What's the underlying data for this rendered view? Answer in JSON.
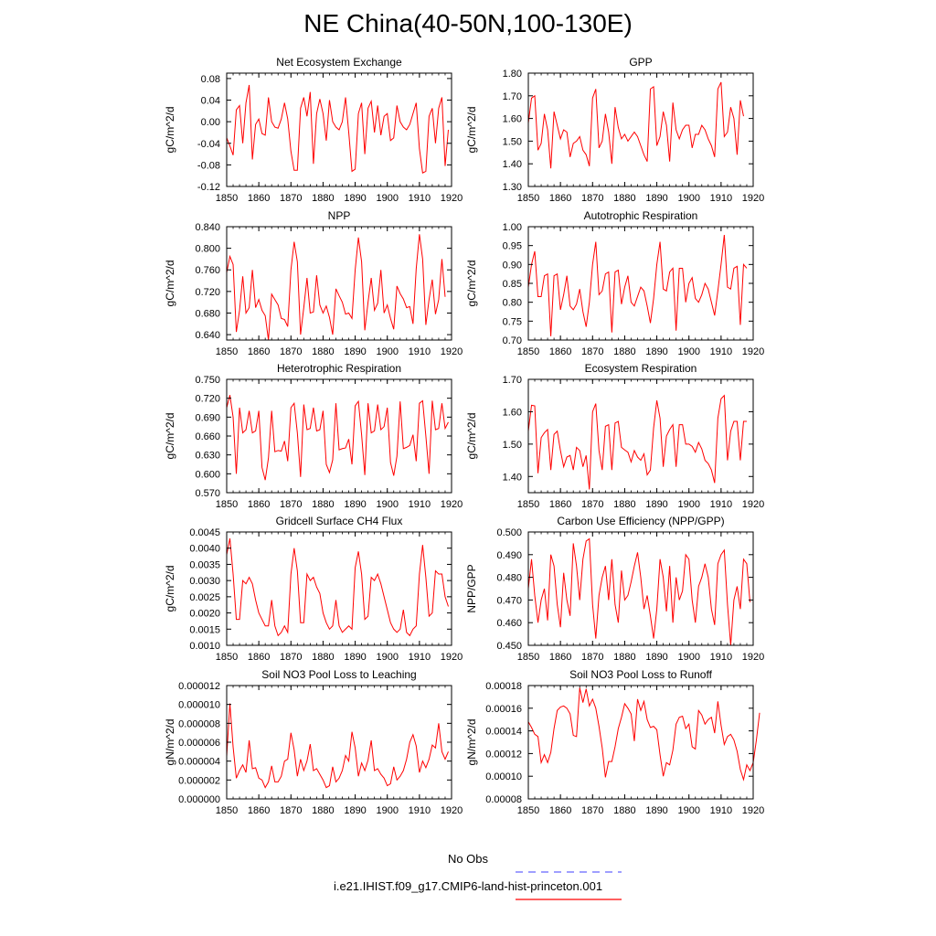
{
  "title": "NE China(40-50N,100-130E)",
  "legend": {
    "obs_label": "No Obs",
    "obs_color": "#6666ff",
    "model_label": "i.e21.IHIST.f09_g17.CMIP6-land-hist-princeton.001",
    "model_color": "#ff0000"
  },
  "chart_data": [
    {
      "type": "line",
      "title": "Net Ecosystem Exchange",
      "ylabel": "gC/m^2/d",
      "xlim": [
        1850,
        1920
      ],
      "xticks": [
        1850,
        1860,
        1870,
        1880,
        1890,
        1900,
        1910,
        1920
      ],
      "ylim": [
        -0.12,
        0.09
      ],
      "yticks": [
        -0.12,
        -0.08,
        -0.04,
        0.0,
        0.04,
        0.08
      ],
      "yticklabels": [
        "-0.12",
        "-0.08",
        "-0.04",
        "0.00",
        "0.04",
        "0.08"
      ],
      "x_start": 1850,
      "values": [
        -0.03,
        -0.045,
        -0.062,
        0.022,
        0.03,
        -0.04,
        0.035,
        0.068,
        -0.07,
        -0.005,
        0.005,
        -0.022,
        -0.025,
        0.045,
        0.0,
        -0.01,
        -0.012,
        0.005,
        0.035,
        0.005,
        -0.055,
        -0.09,
        -0.09,
        0.025,
        0.045,
        0.01,
        0.055,
        -0.078,
        0.015,
        0.042,
        0.015,
        -0.035,
        0.04,
        0.0,
        -0.01,
        -0.015,
        0.0,
        0.045,
        -0.02,
        -0.092,
        -0.088,
        0.015,
        0.035,
        -0.06,
        0.025,
        0.038,
        -0.02,
        0.03,
        -0.025,
        0.01,
        0.015,
        -0.035,
        -0.03,
        0.03,
        0.0,
        -0.01,
        -0.015,
        -0.005,
        0.015,
        0.035,
        -0.05,
        -0.095,
        -0.092,
        0.01,
        0.025,
        -0.04,
        0.025,
        0.045,
        -0.082,
        -0.015
      ]
    },
    {
      "type": "line",
      "title": "GPP",
      "ylabel": "gC/m^2/d",
      "xlim": [
        1850,
        1920
      ],
      "xticks": [
        1850,
        1860,
        1870,
        1880,
        1890,
        1900,
        1910,
        1920
      ],
      "ylim": [
        1.3,
        1.8
      ],
      "yticks": [
        1.3,
        1.4,
        1.5,
        1.6,
        1.7,
        1.8
      ],
      "yticklabels": [
        "1.30",
        "1.40",
        "1.50",
        "1.60",
        "1.70",
        "1.80"
      ],
      "x_start": 1850,
      "values": [
        1.58,
        1.69,
        1.7,
        1.46,
        1.49,
        1.62,
        1.55,
        1.38,
        1.63,
        1.57,
        1.51,
        1.55,
        1.54,
        1.43,
        1.49,
        1.5,
        1.52,
        1.46,
        1.44,
        1.39,
        1.69,
        1.73,
        1.47,
        1.5,
        1.62,
        1.54,
        1.4,
        1.65,
        1.56,
        1.51,
        1.53,
        1.5,
        1.52,
        1.54,
        1.52,
        1.48,
        1.44,
        1.41,
        1.73,
        1.74,
        1.48,
        1.52,
        1.63,
        1.57,
        1.41,
        1.67,
        1.55,
        1.51,
        1.55,
        1.57,
        1.57,
        1.47,
        1.53,
        1.53,
        1.57,
        1.55,
        1.51,
        1.48,
        1.43,
        1.73,
        1.76,
        1.52,
        1.54,
        1.65,
        1.6,
        1.44,
        1.68,
        1.61
      ]
    },
    {
      "type": "line",
      "title": "NPP",
      "ylabel": "gC/m^2/d",
      "xlim": [
        1850,
        1920
      ],
      "xticks": [
        1850,
        1860,
        1870,
        1880,
        1890,
        1900,
        1910,
        1920
      ],
      "ylim": [
        0.63,
        0.84
      ],
      "yticks": [
        0.64,
        0.68,
        0.72,
        0.76,
        0.8,
        0.84
      ],
      "yticklabels": [
        "0.640",
        "0.680",
        "0.720",
        "0.760",
        "0.800",
        "0.840"
      ],
      "x_start": 1850,
      "values": [
        0.755,
        0.785,
        0.77,
        0.645,
        0.685,
        0.748,
        0.68,
        0.69,
        0.76,
        0.69,
        0.705,
        0.685,
        0.675,
        0.63,
        0.715,
        0.705,
        0.695,
        0.67,
        0.668,
        0.655,
        0.76,
        0.812,
        0.775,
        0.64,
        0.69,
        0.745,
        0.68,
        0.682,
        0.75,
        0.695,
        0.68,
        0.693,
        0.672,
        0.64,
        0.725,
        0.712,
        0.7,
        0.678,
        0.68,
        0.67,
        0.76,
        0.82,
        0.775,
        0.648,
        0.7,
        0.745,
        0.685,
        0.698,
        0.76,
        0.68,
        0.695,
        0.67,
        0.65,
        0.73,
        0.716,
        0.706,
        0.69,
        0.692,
        0.66,
        0.762,
        0.826,
        0.78,
        0.658,
        0.705,
        0.742,
        0.678,
        0.705,
        0.78,
        0.71
      ]
    },
    {
      "type": "line",
      "title": "Autotrophic Respiration",
      "ylabel": "gC/m^2/d",
      "xlim": [
        1850,
        1920
      ],
      "xticks": [
        1850,
        1860,
        1870,
        1880,
        1890,
        1900,
        1910,
        1920
      ],
      "ylim": [
        0.7,
        1.0
      ],
      "yticks": [
        0.7,
        0.75,
        0.8,
        0.85,
        0.9,
        0.95,
        1.0
      ],
      "yticklabels": [
        "0.70",
        "0.75",
        "0.80",
        "0.85",
        "0.90",
        "0.95",
        "1.00"
      ],
      "x_start": 1850,
      "values": [
        0.84,
        0.9,
        0.935,
        0.815,
        0.815,
        0.87,
        0.875,
        0.71,
        0.87,
        0.875,
        0.78,
        0.82,
        0.87,
        0.79,
        0.78,
        0.795,
        0.835,
        0.775,
        0.735,
        0.8,
        0.9,
        0.96,
        0.82,
        0.83,
        0.875,
        0.88,
        0.72,
        0.88,
        0.885,
        0.795,
        0.84,
        0.87,
        0.8,
        0.79,
        0.815,
        0.84,
        0.83,
        0.79,
        0.745,
        0.81,
        0.9,
        0.96,
        0.835,
        0.83,
        0.88,
        0.89,
        0.725,
        0.89,
        0.89,
        0.8,
        0.85,
        0.865,
        0.81,
        0.8,
        0.82,
        0.85,
        0.835,
        0.8,
        0.765,
        0.83,
        0.9,
        0.978,
        0.84,
        0.835,
        0.89,
        0.895,
        0.74,
        0.9,
        0.89
      ]
    },
    {
      "type": "line",
      "title": "Heterotrophic Respiration",
      "ylabel": "gC/m^2/d",
      "xlim": [
        1850,
        1920
      ],
      "xticks": [
        1850,
        1860,
        1870,
        1880,
        1890,
        1900,
        1910,
        1920
      ],
      "ylim": [
        0.57,
        0.75
      ],
      "yticks": [
        0.57,
        0.6,
        0.63,
        0.66,
        0.69,
        0.72,
        0.75
      ],
      "yticklabels": [
        "0.570",
        "0.600",
        "0.630",
        "0.660",
        "0.690",
        "0.720",
        "0.750"
      ],
      "x_start": 1850,
      "values": [
        0.705,
        0.725,
        0.69,
        0.6,
        0.705,
        0.665,
        0.67,
        0.7,
        0.665,
        0.668,
        0.7,
        0.61,
        0.59,
        0.625,
        0.7,
        0.635,
        0.637,
        0.636,
        0.652,
        0.62,
        0.705,
        0.712,
        0.665,
        0.595,
        0.71,
        0.67,
        0.672,
        0.705,
        0.668,
        0.67,
        0.7,
        0.615,
        0.602,
        0.622,
        0.712,
        0.638,
        0.64,
        0.641,
        0.655,
        0.615,
        0.708,
        0.715,
        0.662,
        0.598,
        0.712,
        0.665,
        0.668,
        0.71,
        0.67,
        0.675,
        0.705,
        0.618,
        0.597,
        0.628,
        0.715,
        0.64,
        0.642,
        0.645,
        0.662,
        0.62,
        0.712,
        0.716,
        0.66,
        0.6,
        0.716,
        0.67,
        0.672,
        0.712,
        0.672,
        0.682
      ]
    },
    {
      "type": "line",
      "title": "Ecosystem Respiration",
      "ylabel": "gC/m^2/d",
      "xlim": [
        1850,
        1920
      ],
      "xticks": [
        1850,
        1860,
        1870,
        1880,
        1890,
        1900,
        1910,
        1920
      ],
      "ylim": [
        1.35,
        1.7
      ],
      "yticks": [
        1.4,
        1.5,
        1.6,
        1.7
      ],
      "yticklabels": [
        "1.40",
        "1.50",
        "1.60",
        "1.70"
      ],
      "x_start": 1850,
      "values": [
        1.54,
        1.62,
        1.618,
        1.41,
        1.52,
        1.535,
        1.545,
        1.42,
        1.53,
        1.54,
        1.48,
        1.43,
        1.46,
        1.465,
        1.42,
        1.49,
        1.48,
        1.43,
        1.465,
        1.36,
        1.6,
        1.625,
        1.48,
        1.42,
        1.555,
        1.56,
        1.42,
        1.565,
        1.57,
        1.49,
        1.482,
        1.475,
        1.445,
        1.48,
        1.46,
        1.45,
        1.47,
        1.405,
        1.42,
        1.55,
        1.635,
        1.58,
        1.43,
        1.525,
        1.545,
        1.56,
        1.43,
        1.56,
        1.56,
        1.5,
        1.5,
        1.493,
        1.475,
        1.505,
        1.485,
        1.45,
        1.44,
        1.42,
        1.38,
        1.58,
        1.64,
        1.65,
        1.45,
        1.54,
        1.57,
        1.57,
        1.45,
        1.57,
        1.57
      ]
    },
    {
      "type": "line",
      "title": "Gridcell Surface CH4 Flux",
      "ylabel": "gC/m^2/d",
      "xlim": [
        1850,
        1920
      ],
      "xticks": [
        1850,
        1860,
        1870,
        1880,
        1890,
        1900,
        1910,
        1920
      ],
      "ylim": [
        0.001,
        0.0045
      ],
      "yticks": [
        0.001,
        0.0015,
        0.002,
        0.0025,
        0.003,
        0.0035,
        0.004,
        0.0045
      ],
      "yticklabels": [
        "0.0010",
        "0.0015",
        "0.0020",
        "0.0025",
        "0.0030",
        "0.0035",
        "0.0040",
        "0.0045"
      ],
      "x_start": 1850,
      "values": [
        0.0038,
        0.0043,
        0.0032,
        0.0018,
        0.0018,
        0.003,
        0.0029,
        0.0031,
        0.0029,
        0.0024,
        0.002,
        0.0018,
        0.0016,
        0.0016,
        0.0024,
        0.0016,
        0.0013,
        0.0014,
        0.0016,
        0.0014,
        0.0032,
        0.004,
        0.0033,
        0.0017,
        0.0017,
        0.0032,
        0.003,
        0.0031,
        0.0028,
        0.0026,
        0.002,
        0.0017,
        0.0015,
        0.0016,
        0.0024,
        0.0016,
        0.0014,
        0.0015,
        0.0016,
        0.0015,
        0.0034,
        0.0039,
        0.0032,
        0.0018,
        0.0019,
        0.0031,
        0.003,
        0.0032,
        0.0029,
        0.0025,
        0.0021,
        0.0017,
        0.0015,
        0.0014,
        0.0015,
        0.0021,
        0.0014,
        0.0013,
        0.0015,
        0.0016,
        0.0032,
        0.0041,
        0.0031,
        0.0019,
        0.002,
        0.0033,
        0.0032,
        0.0032,
        0.0025,
        0.0022
      ]
    },
    {
      "type": "line",
      "title": "Carbon Use Efficiency (NPP/GPP)",
      "ylabel": "NPP/GPP",
      "xlim": [
        1850,
        1920
      ],
      "xticks": [
        1850,
        1860,
        1870,
        1880,
        1890,
        1900,
        1910,
        1920
      ],
      "ylim": [
        0.45,
        0.5
      ],
      "yticks": [
        0.45,
        0.46,
        0.47,
        0.48,
        0.49,
        0.5
      ],
      "yticklabels": [
        "0.450",
        "0.460",
        "0.470",
        "0.480",
        "0.490",
        "0.500"
      ],
      "x_start": 1850,
      "values": [
        0.475,
        0.488,
        0.472,
        0.46,
        0.47,
        0.475,
        0.461,
        0.49,
        0.485,
        0.468,
        0.458,
        0.482,
        0.47,
        0.463,
        0.495,
        0.485,
        0.47,
        0.488,
        0.496,
        0.497,
        0.468,
        0.453,
        0.472,
        0.48,
        0.485,
        0.47,
        0.488,
        0.468,
        0.46,
        0.483,
        0.47,
        0.472,
        0.478,
        0.485,
        0.491,
        0.48,
        0.466,
        0.472,
        0.463,
        0.453,
        0.466,
        0.488,
        0.48,
        0.465,
        0.485,
        0.46,
        0.48,
        0.47,
        0.474,
        0.49,
        0.488,
        0.47,
        0.46,
        0.476,
        0.48,
        0.486,
        0.48,
        0.466,
        0.459,
        0.486,
        0.49,
        0.492,
        0.468,
        0.45,
        0.47,
        0.476,
        0.466,
        0.488,
        0.486,
        0.469
      ]
    },
    {
      "type": "line",
      "title": "Soil NO3 Pool Loss to Leaching",
      "ylabel": "gN/m^2/d",
      "xlim": [
        1850,
        1920
      ],
      "xticks": [
        1850,
        1860,
        1870,
        1880,
        1890,
        1900,
        1910,
        1920
      ],
      "ylim": [
        0.0,
        1.2e-05
      ],
      "yticks": [
        0.0,
        2e-06,
        4e-06,
        6e-06,
        8e-06,
        1e-05,
        1.2e-05
      ],
      "yticklabels": [
        "0.000000",
        "0.000002",
        "0.000004",
        "0.000006",
        "0.000008",
        "0.000010",
        "0.000012"
      ],
      "x_start": 1850,
      "values": [
        4.5e-06,
        1.01e-05,
        5.5e-06,
        2.2e-06,
        3e-06,
        3.6e-06,
        2.8e-06,
        6.2e-06,
        3.2e-06,
        3.3e-06,
        2.2e-06,
        2e-06,
        1.2e-06,
        1.8e-06,
        3.5e-06,
        1.8e-06,
        1.8e-06,
        2.4e-06,
        4e-06,
        4.2e-06,
        7e-06,
        5.2e-06,
        2.4e-06,
        4.2e-06,
        3e-06,
        4e-06,
        5.8e-06,
        3e-06,
        3.2e-06,
        2.6e-06,
        2e-06,
        1.2e-06,
        1.4e-06,
        3.4e-06,
        1.8e-06,
        2.2e-06,
        3e-06,
        4.6e-06,
        4e-06,
        7.1e-06,
        5.4e-06,
        2.4e-06,
        3.8e-06,
        3e-06,
        4.1e-06,
        6.2e-06,
        3e-06,
        3.2e-06,
        2.6e-06,
        2.2e-06,
        1.4e-06,
        1.6e-06,
        3.4e-06,
        2e-06,
        2.4e-06,
        3e-06,
        4.2e-06,
        6e-06,
        6.8e-06,
        5.6e-06,
        2.8e-06,
        4e-06,
        3.3e-06,
        4.2e-06,
        5.7e-06,
        5.4e-06,
        8e-06,
        5e-06,
        4.2e-06,
        5e-06
      ]
    },
    {
      "type": "line",
      "title": "Soil NO3 Pool Loss to Runoff",
      "ylabel": "gN/m^2/d",
      "xlim": [
        1850,
        1920
      ],
      "xticks": [
        1850,
        1860,
        1870,
        1880,
        1890,
        1900,
        1910,
        1920
      ],
      "ylim": [
        8e-05,
        0.00018
      ],
      "yticks": [
        8e-05,
        0.0001,
        0.00012,
        0.00014,
        0.00016,
        0.00018
      ],
      "yticklabels": [
        "0.00008",
        "0.00010",
        "0.00012",
        "0.00014",
        "0.00016",
        "0.00018"
      ],
      "x_start": 1850,
      "values": [
        0.000148,
        0.000143,
        0.000137,
        0.000135,
        0.000112,
        0.000119,
        0.000112,
        0.000121,
        0.000142,
        0.000158,
        0.000161,
        0.000162,
        0.00016,
        0.000155,
        0.000136,
        0.000135,
        0.000178,
        0.000165,
        0.000177,
        0.000162,
        0.000168,
        0.00016,
        0.000144,
        0.000125,
        9.9e-05,
        0.000113,
        0.000113,
        0.000126,
        0.000142,
        0.000152,
        0.000164,
        0.00016,
        0.000155,
        0.000131,
        0.000168,
        0.000158,
        0.000166,
        0.00015,
        0.000143,
        0.000144,
        0.000141,
        0.000119,
        0.0001,
        0.000112,
        0.00011,
        0.000123,
        0.000146,
        0.000152,
        0.000153,
        0.000142,
        0.000146,
        0.000126,
        0.000124,
        0.000158,
        0.000154,
        0.000146,
        0.00015,
        0.000152,
        0.000138,
        0.000166,
        0.000145,
        0.000128,
        0.000135,
        0.000137,
        0.000132,
        0.000122,
        0.000106,
        9.7e-05,
        0.00011,
        0.000105,
        0.000112,
        0.000132,
        0.000156
      ]
    }
  ]
}
